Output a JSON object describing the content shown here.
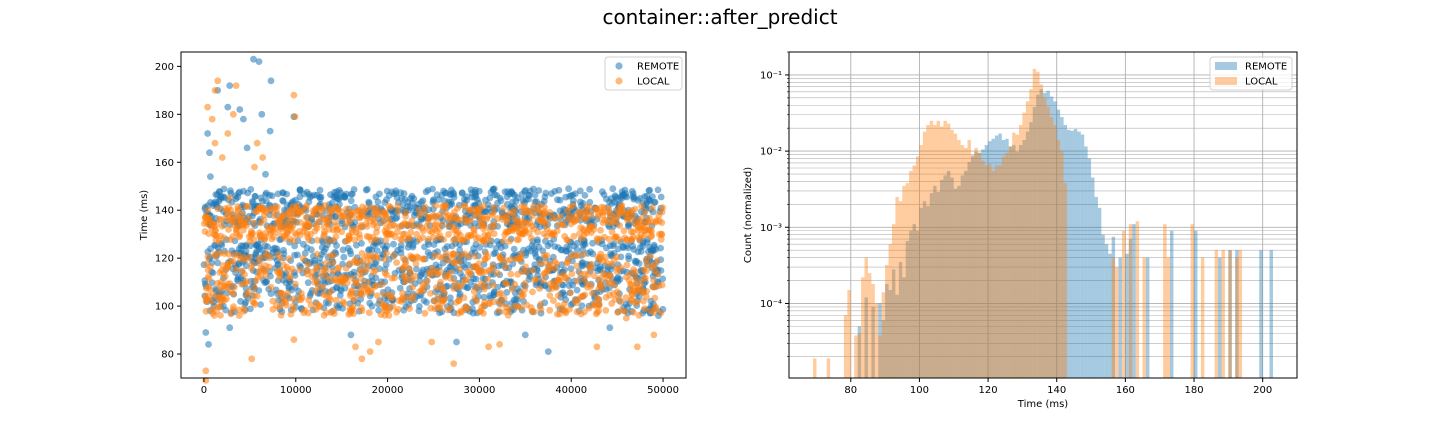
{
  "figure": {
    "title": "container::after_predict"
  },
  "colors": {
    "remote": "#1f77b4",
    "local": "#ff7f0e",
    "grid": "#b0b0b0"
  },
  "chart_data": [
    {
      "type": "scatter",
      "ylabel": "Time (ms)",
      "xlabel": "",
      "xlim": [
        -2500,
        52500
      ],
      "ylim": [
        70,
        206
      ],
      "xticks": [
        0,
        10000,
        20000,
        30000,
        40000,
        50000
      ],
      "yticks": [
        80,
        100,
        120,
        140,
        160,
        180,
        200
      ],
      "legend": {
        "placement": "top-right",
        "entries": [
          "REMOTE",
          "LOCAL"
        ]
      },
      "grid": false,
      "series": [
        {
          "name": "REMOTE",
          "bands": [
            {
              "x": [
                0,
                50000
              ],
              "y": [
                133,
                149
              ],
              "density": "high"
            },
            {
              "x": [
                0,
                50000
              ],
              "y": [
                108,
                128
              ],
              "density": "high"
            },
            {
              "x": [
                0,
                50000
              ],
              "y": [
                97,
                108
              ],
              "density": "medium"
            }
          ],
          "outliers": [
            {
              "x": 400,
              "y": 172
            },
            {
              "x": 600,
              "y": 164
            },
            {
              "x": 700,
              "y": 154
            },
            {
              "x": 1500,
              "y": 190
            },
            {
              "x": 2800,
              "y": 192
            },
            {
              "x": 2600,
              "y": 183
            },
            {
              "x": 3900,
              "y": 182
            },
            {
              "x": 4300,
              "y": 178
            },
            {
              "x": 4700,
              "y": 166
            },
            {
              "x": 5400,
              "y": 203
            },
            {
              "x": 6000,
              "y": 202
            },
            {
              "x": 6300,
              "y": 180
            },
            {
              "x": 6700,
              "y": 155
            },
            {
              "x": 7300,
              "y": 194
            },
            {
              "x": 7200,
              "y": 173
            },
            {
              "x": 9800,
              "y": 179
            },
            {
              "x": 200,
              "y": 89
            },
            {
              "x": 500,
              "y": 84
            },
            {
              "x": 2800,
              "y": 91
            },
            {
              "x": 16000,
              "y": 88
            },
            {
              "x": 27500,
              "y": 85
            },
            {
              "x": 35000,
              "y": 88
            },
            {
              "x": 37500,
              "y": 81
            },
            {
              "x": 44200,
              "y": 91
            },
            {
              "x": 49500,
              "y": 96
            }
          ]
        },
        {
          "name": "LOCAL",
          "bands": [
            {
              "x": [
                0,
                50000
              ],
              "y": [
                127,
                142
              ],
              "density": "high"
            },
            {
              "x": [
                0,
                50000
              ],
              "y": [
                96,
                122
              ],
              "density": "high"
            }
          ],
          "outliers": [
            {
              "x": 200,
              "y": 73
            },
            {
              "x": 200,
              "y": 69
            },
            {
              "x": 400,
              "y": 183
            },
            {
              "x": 900,
              "y": 178
            },
            {
              "x": 1200,
              "y": 190
            },
            {
              "x": 1500,
              "y": 194
            },
            {
              "x": 1200,
              "y": 168
            },
            {
              "x": 2000,
              "y": 162
            },
            {
              "x": 2600,
              "y": 172
            },
            {
              "x": 3500,
              "y": 192
            },
            {
              "x": 3200,
              "y": 180
            },
            {
              "x": 2800,
              "y": 145
            },
            {
              "x": 5500,
              "y": 158
            },
            {
              "x": 5800,
              "y": 168
            },
            {
              "x": 6400,
              "y": 162
            },
            {
              "x": 9800,
              "y": 188
            },
            {
              "x": 9900,
              "y": 179
            },
            {
              "x": 5200,
              "y": 78
            },
            {
              "x": 9800,
              "y": 86
            },
            {
              "x": 16500,
              "y": 83
            },
            {
              "x": 17200,
              "y": 78
            },
            {
              "x": 18100,
              "y": 81
            },
            {
              "x": 19000,
              "y": 85
            },
            {
              "x": 24800,
              "y": 85
            },
            {
              "x": 27200,
              "y": 76
            },
            {
              "x": 31000,
              "y": 83
            },
            {
              "x": 32200,
              "y": 84
            },
            {
              "x": 42800,
              "y": 83
            },
            {
              "x": 46000,
              "y": 95
            },
            {
              "x": 47200,
              "y": 83
            },
            {
              "x": 49000,
              "y": 88
            }
          ]
        }
      ]
    },
    {
      "type": "bar",
      "subtype": "histogram",
      "xlabel": "Time (ms)",
      "ylabel": "Count (normalized)",
      "xlim": [
        62,
        210
      ],
      "ylim": [
        1.05e-05,
        0.2
      ],
      "yscale": "log",
      "xticks": [
        80,
        100,
        120,
        140,
        160,
        180,
        200
      ],
      "yticks": [
        {
          "value": 0.0001,
          "label": "10⁻⁴"
        },
        {
          "value": 0.001,
          "label": "10⁻³"
        },
        {
          "value": 0.01,
          "label": "10⁻²"
        },
        {
          "value": 0.1,
          "label": "10⁻¹"
        }
      ],
      "grid": true,
      "legend": {
        "placement": "top-right",
        "entries": [
          "REMOTE",
          "LOCAL"
        ]
      },
      "bin_width": 1,
      "series": [
        {
          "name": "REMOTE",
          "bins": [
            [
              82,
              5e-05
            ],
            [
              84,
              0.00012
            ],
            [
              86,
              9e-05
            ],
            [
              88,
              0.0001
            ],
            [
              89,
              6e-05
            ],
            [
              90,
              0.00018
            ],
            [
              91,
              0.00015
            ],
            [
              92,
              0.00028
            ],
            [
              93,
              0.00013
            ],
            [
              94,
              0.00035
            ],
            [
              95,
              0.00022
            ],
            [
              96,
              0.00066
            ],
            [
              97,
              0.0009
            ],
            [
              98,
              0.0011
            ],
            [
              99,
              0.0009
            ],
            [
              100,
              0.0018
            ],
            [
              101,
              0.0022
            ],
            [
              102,
              0.0019
            ],
            [
              103,
              0.0028
            ],
            [
              104,
              0.0035
            ],
            [
              105,
              0.0029
            ],
            [
              106,
              0.0042
            ],
            [
              107,
              0.0048
            ],
            [
              108,
              0.0055
            ],
            [
              109,
              0.0045
            ],
            [
              110,
              0.0032
            ],
            [
              111,
              0.0035
            ],
            [
              112,
              0.0048
            ],
            [
              113,
              0.0055
            ],
            [
              114,
              0.0072
            ],
            [
              115,
              0.0085
            ],
            [
              116,
              0.0098
            ],
            [
              117,
              0.0095
            ],
            [
              118,
              0.0105
            ],
            [
              119,
              0.012
            ],
            [
              120,
              0.0135
            ],
            [
              121,
              0.0145
            ],
            [
              122,
              0.016
            ],
            [
              123,
              0.017
            ],
            [
              124,
              0.014
            ],
            [
              125,
              0.0145
            ],
            [
              126,
              0.0115
            ],
            [
              127,
              0.012
            ],
            [
              128,
              0.0098
            ],
            [
              129,
              0.012
            ],
            [
              130,
              0.014
            ],
            [
              131,
              0.018
            ],
            [
              132,
              0.024
            ],
            [
              133,
              0.038
            ],
            [
              134,
              0.055
            ],
            [
              135,
              0.065
            ],
            [
              136,
              0.058
            ],
            [
              137,
              0.062
            ],
            [
              138,
              0.052
            ],
            [
              139,
              0.045
            ],
            [
              140,
              0.035
            ],
            [
              141,
              0.028
            ],
            [
              142,
              0.022
            ],
            [
              143,
              0.019
            ],
            [
              144,
              0.0185
            ],
            [
              145,
              0.0195
            ],
            [
              146,
              0.018
            ],
            [
              147,
              0.0165
            ],
            [
              148,
              0.0115
            ],
            [
              149,
              0.008
            ],
            [
              150,
              0.0045
            ],
            [
              151,
              0.0025
            ],
            [
              152,
              0.0018
            ],
            [
              153,
              0.0008
            ],
            [
              154,
              0.0006
            ],
            [
              155,
              0.00045
            ],
            [
              156,
              0.00075
            ],
            [
              158,
              0.0004
            ],
            [
              160,
              0.00045
            ],
            [
              161,
              0.0007
            ],
            [
              162,
              0.0011
            ],
            [
              166,
              0.0004
            ],
            [
              173,
              0.0009
            ],
            [
              180,
              0.0009
            ],
            [
              187,
              0.0004
            ],
            [
              190,
              0.0005
            ],
            [
              192,
              0.0005
            ],
            [
              199,
              0.0005
            ],
            [
              202,
              0.0005
            ]
          ]
        },
        {
          "name": "LOCAL",
          "bins": [
            [
              69,
              1.9e-05
            ],
            [
              73,
              1.9e-05
            ],
            [
              78,
              7e-05
            ],
            [
              79,
              0.00015
            ],
            [
              81,
              3.8e-05
            ],
            [
              82,
              4e-05
            ],
            [
              83,
              0.00022
            ],
            [
              84,
              0.0004
            ],
            [
              85,
              0.00025
            ],
            [
              86,
              0.00018
            ],
            [
              87,
              0.0001
            ],
            [
              88,
              3.8e-05
            ],
            [
              89,
              0.00014
            ],
            [
              90,
              0.00032
            ],
            [
              91,
              0.0006
            ],
            [
              92,
              0.0011
            ],
            [
              93,
              0.0025
            ],
            [
              94,
              0.0022
            ],
            [
              95,
              0.0035
            ],
            [
              96,
              0.0038
            ],
            [
              97,
              0.0055
            ],
            [
              98,
              0.0065
            ],
            [
              99,
              0.0085
            ],
            [
              100,
              0.012
            ],
            [
              101,
              0.018
            ],
            [
              102,
              0.022
            ],
            [
              103,
              0.025
            ],
            [
              104,
              0.022
            ],
            [
              105,
              0.025
            ],
            [
              106,
              0.021
            ],
            [
              107,
              0.025
            ],
            [
              108,
              0.023
            ],
            [
              109,
              0.019
            ],
            [
              110,
              0.017
            ],
            [
              111,
              0.014
            ],
            [
              112,
              0.012
            ],
            [
              113,
              0.011
            ],
            [
              114,
              0.014
            ],
            [
              115,
              0.009
            ],
            [
              116,
              0.011
            ],
            [
              117,
              0.0095
            ],
            [
              118,
              0.0075
            ],
            [
              119,
              0.0065
            ],
            [
              120,
              0.0068
            ],
            [
              121,
              0.0055
            ],
            [
              122,
              0.0065
            ],
            [
              123,
              0.0065
            ],
            [
              124,
              0.0085
            ],
            [
              125,
              0.0095
            ],
            [
              126,
              0.0115
            ],
            [
              127,
              0.0175
            ],
            [
              128,
              0.0165
            ],
            [
              129,
              0.022
            ],
            [
              130,
              0.032
            ],
            [
              131,
              0.045
            ],
            [
              132,
              0.065
            ],
            [
              133,
              0.12
            ],
            [
              134,
              0.11
            ],
            [
              135,
              0.075
            ],
            [
              136,
              0.05
            ],
            [
              137,
              0.038
            ],
            [
              138,
              0.028
            ],
            [
              139,
              0.022
            ],
            [
              140,
              0.014
            ],
            [
              141,
              0.01
            ],
            [
              142,
              0.0038
            ],
            [
              156,
              0.0004
            ],
            [
              157,
              0.0003
            ],
            [
              159,
              0.0009
            ],
            [
              161,
              0.0011
            ],
            [
              163,
              0.0012
            ],
            [
              165,
              0.0004
            ],
            [
              171,
              0.0011
            ],
            [
              172,
              0.0004
            ],
            [
              179,
              0.0011
            ],
            [
              182,
              0.0004
            ],
            [
              186,
              0.0005
            ],
            [
              188,
              0.0005
            ],
            [
              190,
              0.0005
            ],
            [
              192,
              0.0004
            ],
            [
              193,
              0.0005
            ]
          ]
        }
      ]
    }
  ]
}
